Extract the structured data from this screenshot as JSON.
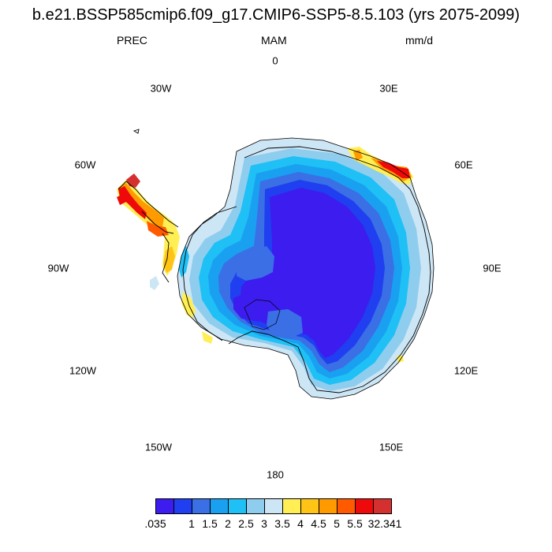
{
  "title": "b.e21.BSSP585cmip6.f09_g17.CMIP6-SSP5-8.5.103 (yrs 2075-2099)",
  "variable": "PREC",
  "season": "MAM",
  "units": "mm/d",
  "longitude_labels": {
    "top": "0",
    "upper_left": "30W",
    "upper_right": "30E",
    "mid_upper_left": "60W",
    "mid_upper_right": "60E",
    "left": "90W",
    "right": "90E",
    "mid_lower_left": "120W",
    "mid_lower_right": "120E",
    "lower_left": "150W",
    "lower_right": "150E",
    "bottom": "180"
  },
  "colorbar": {
    "colors": [
      "#3d1cf0",
      "#1f3ff0",
      "#3a6fe6",
      "#1aa0f0",
      "#1ec0f5",
      "#8fcdee",
      "#cde6f5",
      "#ffef55",
      "#ffc416",
      "#ff9a00",
      "#ff5a00",
      "#ee0a0a",
      "#d43030"
    ],
    "tick_labels": [
      ".035",
      "1",
      "1.5",
      "2",
      "2.5",
      "3",
      "3.5",
      "4",
      "4.5",
      "5",
      "5.5",
      "32.341"
    ]
  }
}
